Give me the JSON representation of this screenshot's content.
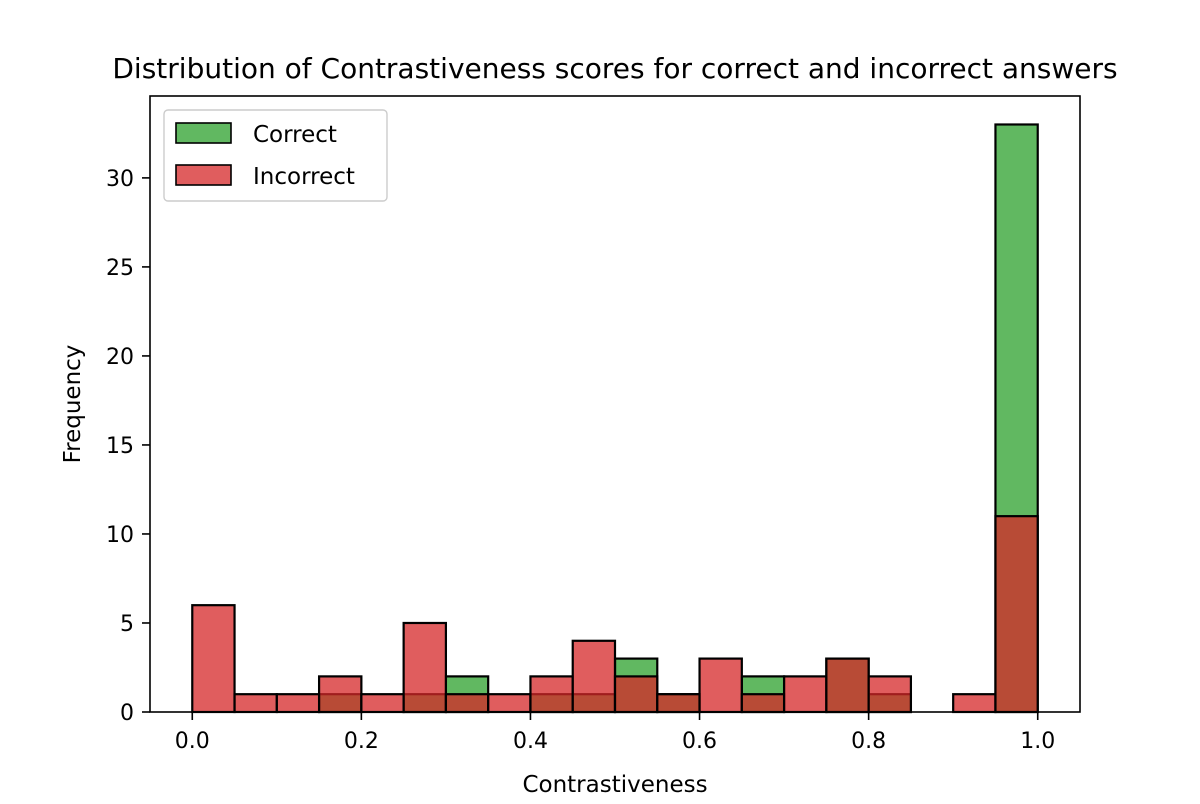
{
  "chart_data": {
    "type": "bar",
    "title": "Distribution of Contrastiveness scores for correct and incorrect answers",
    "xlabel": "Contrastiveness",
    "ylabel": "Frequency",
    "xlim": [
      -0.05,
      1.05
    ],
    "ylim": [
      0,
      34.6
    ],
    "xticks": [
      0.0,
      0.2,
      0.4,
      0.6,
      0.8,
      1.0
    ],
    "xtick_labels": [
      "0.0",
      "0.2",
      "0.4",
      "0.6",
      "0.8",
      "1.0"
    ],
    "yticks": [
      0,
      5,
      10,
      15,
      20,
      25,
      30
    ],
    "ytick_labels": [
      "0",
      "5",
      "10",
      "15",
      "20",
      "25",
      "30"
    ],
    "bin_edges": [
      0.0,
      0.05,
      0.1,
      0.15,
      0.2,
      0.25,
      0.3,
      0.35,
      0.4,
      0.45,
      0.5,
      0.55,
      0.6,
      0.65,
      0.7,
      0.75,
      0.8,
      0.85,
      0.9,
      0.95,
      1.0
    ],
    "series": [
      {
        "name": "Correct",
        "color": "#2ca02c",
        "values": [
          0,
          0,
          0,
          1,
          0,
          1,
          2,
          0,
          1,
          1,
          3,
          1,
          0,
          2,
          0,
          3,
          1,
          0,
          0,
          33
        ]
      },
      {
        "name": "Incorrect",
        "color": "#d62728",
        "values": [
          6,
          1,
          1,
          2,
          1,
          5,
          1,
          1,
          2,
          4,
          2,
          1,
          3,
          1,
          2,
          3,
          2,
          0,
          1,
          11
        ]
      }
    ],
    "legend_position": "top-left",
    "grid": false
  }
}
